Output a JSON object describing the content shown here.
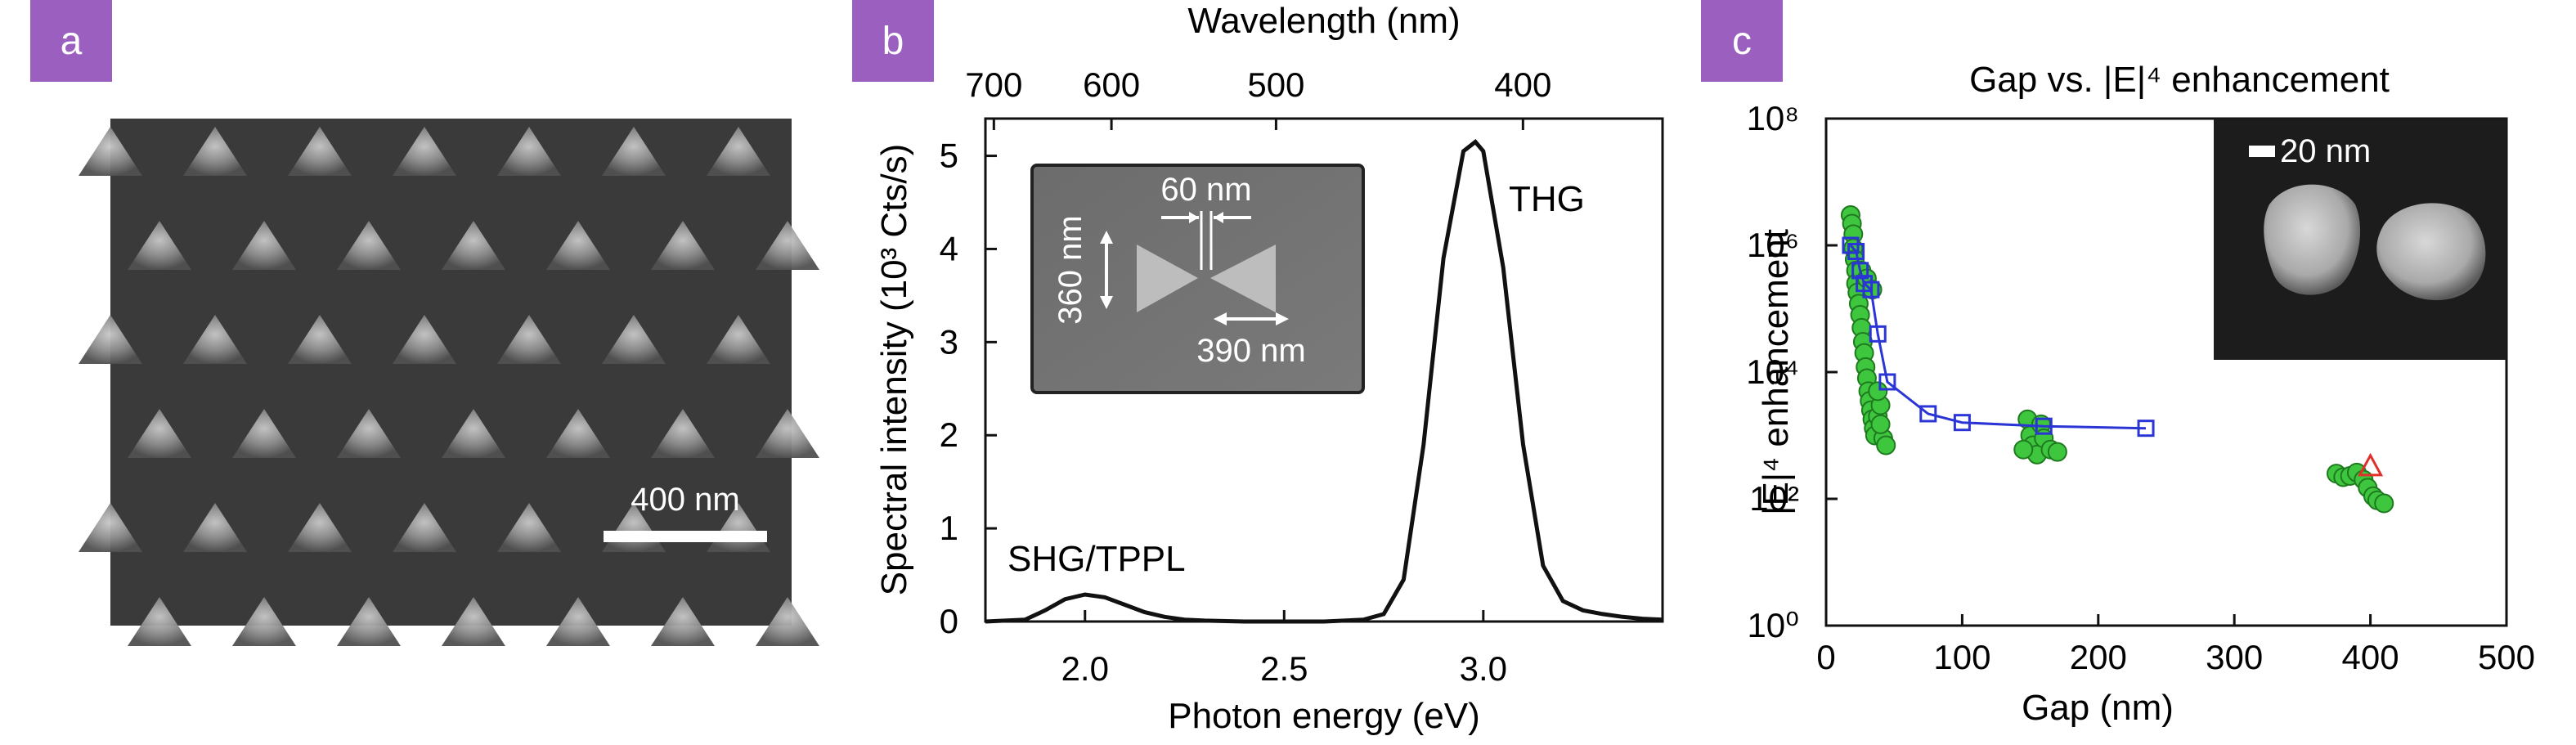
{
  "panels": {
    "a": {
      "badge": "a",
      "scale_bar_label": "400 nm"
    },
    "b": {
      "badge": "b",
      "inset": {
        "gap_label": "60 nm",
        "height_label": "360 nm",
        "width_label": "390 nm"
      },
      "annotations": [
        "THG",
        "SHG/TPPL"
      ]
    },
    "c": {
      "badge": "c",
      "inset": {
        "scale_bar_label": "20 nm"
      }
    }
  },
  "chart_data": [
    {
      "panel": "b",
      "type": "line",
      "title": "",
      "xlabel": "Photon energy (eV)",
      "ylabel": "Spectral intensity (10³ Cts/s)",
      "top_xlabel": "Wavelength (nm)",
      "xlim": [
        1.75,
        3.45
      ],
      "ylim": [
        0,
        5.4
      ],
      "x_ticks": [
        2.0,
        2.5,
        3.0
      ],
      "x_tick_labels": [
        "2.0",
        "2.5",
        "3.0"
      ],
      "y_ticks": [
        0,
        1,
        2,
        3,
        4,
        5
      ],
      "y_tick_labels": [
        "0",
        "1",
        "2",
        "3",
        "4",
        "5"
      ],
      "top_ticks_nm": [
        700,
        600,
        500,
        400
      ],
      "top_tick_labels": [
        "700",
        "600",
        "500",
        "400"
      ],
      "series": [
        {
          "color": "#111111",
          "x": [
            1.75,
            1.85,
            1.9,
            1.95,
            2.0,
            2.05,
            2.1,
            2.15,
            2.2,
            2.25,
            2.3,
            2.4,
            2.5,
            2.6,
            2.7,
            2.75,
            2.8,
            2.85,
            2.9,
            2.95,
            2.98,
            3.0,
            3.05,
            3.1,
            3.15,
            3.2,
            3.25,
            3.3,
            3.35,
            3.4,
            3.45
          ],
          "y": [
            0.0,
            0.02,
            0.12,
            0.24,
            0.29,
            0.26,
            0.18,
            0.1,
            0.05,
            0.02,
            0.01,
            0.0,
            0.0,
            0.0,
            0.02,
            0.08,
            0.45,
            1.9,
            3.9,
            5.05,
            5.15,
            5.05,
            3.8,
            1.9,
            0.6,
            0.22,
            0.12,
            0.08,
            0.05,
            0.03,
            0.02
          ]
        }
      ]
    },
    {
      "panel": "c",
      "type": "scatter",
      "title": "Gap vs. |E|⁴ enhancement",
      "xlabel": "Gap (nm)",
      "ylabel": "|E|⁴ enhancement",
      "xlim": [
        0,
        500
      ],
      "ylim_log10": [
        0,
        8
      ],
      "yscale": "log",
      "x_ticks": [
        0,
        100,
        200,
        300,
        400,
        500
      ],
      "x_tick_labels": [
        "0",
        "100",
        "200",
        "300",
        "400",
        "500"
      ],
      "y_ticks_log10": [
        0,
        2,
        4,
        6,
        8
      ],
      "y_tick_labels": [
        "10⁰",
        "10²",
        "10⁴",
        "10⁶",
        "10⁸"
      ],
      "series": [
        {
          "marker": "circle",
          "color": "#3ec63e",
          "points": [
            [
              18,
              3000000
            ],
            [
              19,
              2200000
            ],
            [
              20,
              1500000
            ],
            [
              20,
              900000
            ],
            [
              21,
              600000
            ],
            [
              22,
              400000
            ],
            [
              22,
              250000
            ],
            [
              23,
              180000
            ],
            [
              24,
              120000
            ],
            [
              25,
              80000
            ],
            [
              26,
              50000
            ],
            [
              27,
              30000
            ],
            [
              28,
              20000
            ],
            [
              29,
              12000
            ],
            [
              30,
              8000
            ],
            [
              31,
              5000
            ],
            [
              32,
              3500
            ],
            [
              33,
              2500
            ],
            [
              34,
              1800
            ],
            [
              35,
              1300
            ],
            [
              36,
              1000
            ],
            [
              38,
              2000
            ],
            [
              40,
              3000
            ],
            [
              42,
              900
            ],
            [
              44,
              700
            ],
            [
              26,
              400000
            ],
            [
              30,
              300000
            ],
            [
              34,
              200000
            ],
            [
              38,
              5000
            ],
            [
              40,
              1500
            ],
            [
              148,
              1800
            ],
            [
              150,
              1000
            ],
            [
              152,
              700
            ],
            [
              155,
              500
            ],
            [
              158,
              1500
            ],
            [
              160,
              900
            ],
            [
              165,
              600
            ],
            [
              170,
              550
            ],
            [
              145,
              600
            ],
            [
              375,
              250
            ],
            [
              380,
              220
            ],
            [
              385,
              230
            ],
            [
              390,
              260
            ],
            [
              395,
              200
            ],
            [
              398,
              150
            ],
            [
              402,
              110
            ],
            [
              405,
              95
            ],
            [
              410,
              85
            ]
          ]
        },
        {
          "marker": "square-line",
          "color": "#2b35d6",
          "points": [
            [
              18,
              1000000
            ],
            [
              22,
              800000
            ],
            [
              25,
              400000
            ],
            [
              28,
              250000
            ],
            [
              33,
              200000
            ],
            [
              38,
              40000
            ],
            [
              45,
              7000
            ],
            [
              75,
              2200
            ],
            [
              100,
              1600
            ],
            [
              160,
              1400
            ],
            [
              235,
              1300
            ]
          ]
        },
        {
          "marker": "triangle",
          "color": "#e0302b",
          "points": [
            [
              400,
              320
            ]
          ]
        }
      ]
    }
  ]
}
